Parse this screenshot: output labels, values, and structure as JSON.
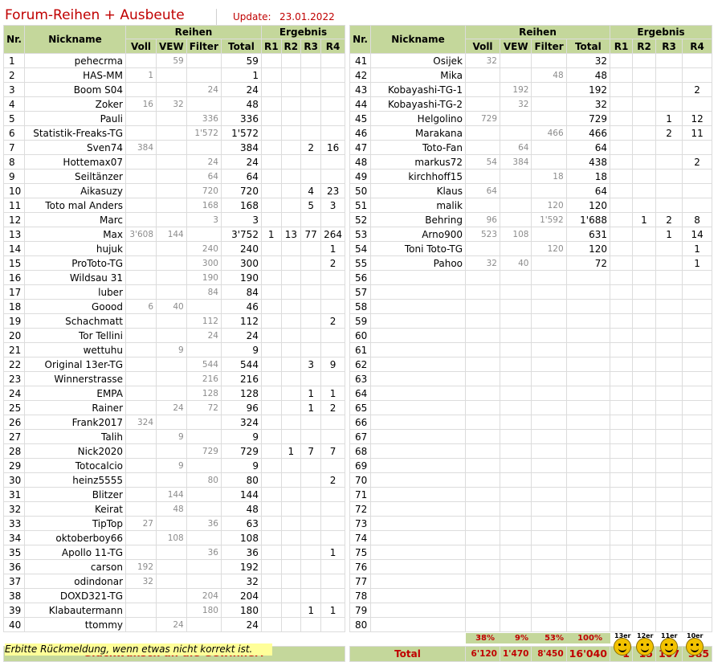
{
  "header": {
    "title": "Forum-Reihen + Ausbeute",
    "update_label": "Update:",
    "update_value": "23.01.2022"
  },
  "columns": {
    "nr": "Nr.",
    "nickname": "Nickname",
    "group_reihen": "Reihen",
    "group_ergebnis": "Ergebnis",
    "voll": "Voll",
    "vew": "VEW",
    "filter": "Filter",
    "total": "Total",
    "r1": "R1",
    "r2": "R2",
    "r3": "R3",
    "r4": "R4"
  },
  "left_rows": [
    {
      "nr": "1",
      "nick": "pehecrma",
      "voll": "",
      "vew": "59",
      "filter": "",
      "total": "59",
      "r1": "",
      "r2": "",
      "r3": "",
      "r4": ""
    },
    {
      "nr": "2",
      "nick": "HAS-MM",
      "voll": "1",
      "vew": "",
      "filter": "",
      "total": "1",
      "r1": "",
      "r2": "",
      "r3": "",
      "r4": ""
    },
    {
      "nr": "3",
      "nick": "Boom S04",
      "voll": "",
      "vew": "",
      "filter": "24",
      "total": "24",
      "r1": "",
      "r2": "",
      "r3": "",
      "r4": ""
    },
    {
      "nr": "4",
      "nick": "Zoker",
      "voll": "16",
      "vew": "32",
      "filter": "",
      "total": "48",
      "r1": "",
      "r2": "",
      "r3": "",
      "r4": ""
    },
    {
      "nr": "5",
      "nick": "Pauli",
      "voll": "",
      "vew": "",
      "filter": "336",
      "total": "336",
      "r1": "",
      "r2": "",
      "r3": "",
      "r4": ""
    },
    {
      "nr": "6",
      "nick": "Statistik-Freaks-TG",
      "voll": "",
      "vew": "",
      "filter": "1'572",
      "total": "1'572",
      "r1": "",
      "r2": "",
      "r3": "",
      "r4": ""
    },
    {
      "nr": "7",
      "nick": "Sven74",
      "voll": "384",
      "vew": "",
      "filter": "",
      "total": "384",
      "r1": "",
      "r2": "",
      "r3": "2",
      "r4": "16"
    },
    {
      "nr": "8",
      "nick": "Hottemax07",
      "voll": "",
      "vew": "",
      "filter": "24",
      "total": "24",
      "r1": "",
      "r2": "",
      "r3": "",
      "r4": ""
    },
    {
      "nr": "9",
      "nick": "Seiltänzer",
      "voll": "",
      "vew": "",
      "filter": "64",
      "total": "64",
      "r1": "",
      "r2": "",
      "r3": "",
      "r4": ""
    },
    {
      "nr": "10",
      "nick": "Aikasuzy",
      "voll": "",
      "vew": "",
      "filter": "720",
      "total": "720",
      "r1": "",
      "r2": "",
      "r3": "4",
      "r4": "23"
    },
    {
      "nr": "11",
      "nick": "Toto mal Anders",
      "voll": "",
      "vew": "",
      "filter": "168",
      "total": "168",
      "r1": "",
      "r2": "",
      "r3": "5",
      "r4": "3"
    },
    {
      "nr": "12",
      "nick": "Marc",
      "voll": "",
      "vew": "",
      "filter": "3",
      "total": "3",
      "r1": "",
      "r2": "",
      "r3": "",
      "r4": ""
    },
    {
      "nr": "13",
      "nick": "Max",
      "voll": "3'608",
      "vew": "144",
      "filter": "",
      "total": "3'752",
      "r1": "1",
      "r2": "13",
      "r3": "77",
      "r4": "264"
    },
    {
      "nr": "14",
      "nick": "hujuk",
      "voll": "",
      "vew": "",
      "filter": "240",
      "total": "240",
      "r1": "",
      "r2": "",
      "r3": "",
      "r4": "1"
    },
    {
      "nr": "15",
      "nick": "ProToto-TG",
      "voll": "",
      "vew": "",
      "filter": "300",
      "total": "300",
      "r1": "",
      "r2": "",
      "r3": "",
      "r4": "2"
    },
    {
      "nr": "16",
      "nick": "Wildsau 31",
      "voll": "",
      "vew": "",
      "filter": "190",
      "total": "190",
      "r1": "",
      "r2": "",
      "r3": "",
      "r4": ""
    },
    {
      "nr": "17",
      "nick": "luber",
      "voll": "",
      "vew": "",
      "filter": "84",
      "total": "84",
      "r1": "",
      "r2": "",
      "r3": "",
      "r4": ""
    },
    {
      "nr": "18",
      "nick": "Goood",
      "voll": "6",
      "vew": "40",
      "filter": "",
      "total": "46",
      "r1": "",
      "r2": "",
      "r3": "",
      "r4": ""
    },
    {
      "nr": "19",
      "nick": "Schachmatt",
      "voll": "",
      "vew": "",
      "filter": "112",
      "total": "112",
      "r1": "",
      "r2": "",
      "r3": "",
      "r4": "2"
    },
    {
      "nr": "20",
      "nick": "Tor Tellini",
      "voll": "",
      "vew": "",
      "filter": "24",
      "total": "24",
      "r1": "",
      "r2": "",
      "r3": "",
      "r4": ""
    },
    {
      "nr": "21",
      "nick": "wettuhu",
      "voll": "",
      "vew": "9",
      "filter": "",
      "total": "9",
      "r1": "",
      "r2": "",
      "r3": "",
      "r4": ""
    },
    {
      "nr": "22",
      "nick": "Original 13er-TG",
      "voll": "",
      "vew": "",
      "filter": "544",
      "total": "544",
      "r1": "",
      "r2": "",
      "r3": "3",
      "r4": "9"
    },
    {
      "nr": "23",
      "nick": "Winnerstrasse",
      "voll": "",
      "vew": "",
      "filter": "216",
      "total": "216",
      "r1": "",
      "r2": "",
      "r3": "",
      "r4": ""
    },
    {
      "nr": "24",
      "nick": "EMPA",
      "voll": "",
      "vew": "",
      "filter": "128",
      "total": "128",
      "r1": "",
      "r2": "",
      "r3": "1",
      "r4": "1"
    },
    {
      "nr": "25",
      "nick": "Rainer",
      "voll": "",
      "vew": "24",
      "filter": "72",
      "total": "96",
      "r1": "",
      "r2": "",
      "r3": "1",
      "r4": "2"
    },
    {
      "nr": "26",
      "nick": "Frank2017",
      "voll": "324",
      "vew": "",
      "filter": "",
      "total": "324",
      "r1": "",
      "r2": "",
      "r3": "",
      "r4": ""
    },
    {
      "nr": "27",
      "nick": "Talih",
      "voll": "",
      "vew": "9",
      "filter": "",
      "total": "9",
      "r1": "",
      "r2": "",
      "r3": "",
      "r4": ""
    },
    {
      "nr": "28",
      "nick": "Nick2020",
      "voll": "",
      "vew": "",
      "filter": "729",
      "total": "729",
      "r1": "",
      "r2": "1",
      "r3": "7",
      "r4": "7"
    },
    {
      "nr": "29",
      "nick": "Totocalcio",
      "voll": "",
      "vew": "9",
      "filter": "",
      "total": "9",
      "r1": "",
      "r2": "",
      "r3": "",
      "r4": ""
    },
    {
      "nr": "30",
      "nick": "heinz5555",
      "voll": "",
      "vew": "",
      "filter": "80",
      "total": "80",
      "r1": "",
      "r2": "",
      "r3": "",
      "r4": "2"
    },
    {
      "nr": "31",
      "nick": "Blitzer",
      "voll": "",
      "vew": "144",
      "filter": "",
      "total": "144",
      "r1": "",
      "r2": "",
      "r3": "",
      "r4": ""
    },
    {
      "nr": "32",
      "nick": "Keirat",
      "voll": "",
      "vew": "48",
      "filter": "",
      "total": "48",
      "r1": "",
      "r2": "",
      "r3": "",
      "r4": ""
    },
    {
      "nr": "33",
      "nick": "TipTop",
      "voll": "27",
      "vew": "",
      "filter": "36",
      "total": "63",
      "r1": "",
      "r2": "",
      "r3": "",
      "r4": ""
    },
    {
      "nr": "34",
      "nick": "oktoberboy66",
      "voll": "",
      "vew": "108",
      "filter": "",
      "total": "108",
      "r1": "",
      "r2": "",
      "r3": "",
      "r4": ""
    },
    {
      "nr": "35",
      "nick": "Apollo 11-TG",
      "voll": "",
      "vew": "",
      "filter": "36",
      "total": "36",
      "r1": "",
      "r2": "",
      "r3": "",
      "r4": "1"
    },
    {
      "nr": "36",
      "nick": "carson",
      "voll": "192",
      "vew": "",
      "filter": "",
      "total": "192",
      "r1": "",
      "r2": "",
      "r3": "",
      "r4": ""
    },
    {
      "nr": "37",
      "nick": "odindonar",
      "voll": "32",
      "vew": "",
      "filter": "",
      "total": "32",
      "r1": "",
      "r2": "",
      "r3": "",
      "r4": ""
    },
    {
      "nr": "38",
      "nick": "DOXD321-TG",
      "voll": "",
      "vew": "",
      "filter": "204",
      "total": "204",
      "r1": "",
      "r2": "",
      "r3": "",
      "r4": ""
    },
    {
      "nr": "39",
      "nick": "Klabautermann",
      "voll": "",
      "vew": "",
      "filter": "180",
      "total": "180",
      "r1": "",
      "r2": "",
      "r3": "1",
      "r4": "1"
    },
    {
      "nr": "40",
      "nick": "ttommy",
      "voll": "",
      "vew": "24",
      "filter": "",
      "total": "24",
      "r1": "",
      "r2": "",
      "r3": "",
      "r4": ""
    }
  ],
  "right_rows": [
    {
      "nr": "41",
      "nick": "Osijek",
      "voll": "32",
      "vew": "",
      "filter": "",
      "total": "32",
      "r1": "",
      "r2": "",
      "r3": "",
      "r4": ""
    },
    {
      "nr": "42",
      "nick": "Mika",
      "voll": "",
      "vew": "",
      "filter": "48",
      "total": "48",
      "r1": "",
      "r2": "",
      "r3": "",
      "r4": ""
    },
    {
      "nr": "43",
      "nick": "Kobayashi-TG-1",
      "voll": "",
      "vew": "192",
      "filter": "",
      "total": "192",
      "r1": "",
      "r2": "",
      "r3": "",
      "r4": "2"
    },
    {
      "nr": "44",
      "nick": "Kobayashi-TG-2",
      "voll": "",
      "vew": "32",
      "filter": "",
      "total": "32",
      "r1": "",
      "r2": "",
      "r3": "",
      "r4": ""
    },
    {
      "nr": "45",
      "nick": "Helgolino",
      "voll": "729",
      "vew": "",
      "filter": "",
      "total": "729",
      "r1": "",
      "r2": "",
      "r3": "1",
      "r4": "12"
    },
    {
      "nr": "46",
      "nick": "Marakana",
      "voll": "",
      "vew": "",
      "filter": "466",
      "total": "466",
      "r1": "",
      "r2": "",
      "r3": "2",
      "r4": "11"
    },
    {
      "nr": "47",
      "nick": "Toto-Fan",
      "voll": "",
      "vew": "64",
      "filter": "",
      "total": "64",
      "r1": "",
      "r2": "",
      "r3": "",
      "r4": ""
    },
    {
      "nr": "48",
      "nick": "markus72",
      "voll": "54",
      "vew": "384",
      "filter": "",
      "total": "438",
      "r1": "",
      "r2": "",
      "r3": "",
      "r4": "2"
    },
    {
      "nr": "49",
      "nick": "kirchhoff15",
      "voll": "",
      "vew": "",
      "filter": "18",
      "total": "18",
      "r1": "",
      "r2": "",
      "r3": "",
      "r4": ""
    },
    {
      "nr": "50",
      "nick": "Klaus",
      "voll": "64",
      "vew": "",
      "filter": "",
      "total": "64",
      "r1": "",
      "r2": "",
      "r3": "",
      "r4": ""
    },
    {
      "nr": "51",
      "nick": "malik",
      "voll": "",
      "vew": "",
      "filter": "120",
      "total": "120",
      "r1": "",
      "r2": "",
      "r3": "",
      "r4": ""
    },
    {
      "nr": "52",
      "nick": "Behring",
      "voll": "96",
      "vew": "",
      "filter": "1'592",
      "total": "1'688",
      "r1": "",
      "r2": "1",
      "r3": "2",
      "r4": "8"
    },
    {
      "nr": "53",
      "nick": "Arno900",
      "voll": "523",
      "vew": "108",
      "filter": "",
      "total": "631",
      "r1": "",
      "r2": "",
      "r3": "1",
      "r4": "14"
    },
    {
      "nr": "54",
      "nick": "Toni Toto-TG",
      "voll": "",
      "vew": "",
      "filter": "120",
      "total": "120",
      "r1": "",
      "r2": "",
      "r3": "",
      "r4": "1"
    },
    {
      "nr": "55",
      "nick": "Pahoo",
      "voll": "32",
      "vew": "40",
      "filter": "",
      "total": "72",
      "r1": "",
      "r2": "",
      "r3": "",
      "r4": "1"
    },
    {
      "nr": "56",
      "nick": "",
      "voll": "",
      "vew": "",
      "filter": "",
      "total": "",
      "r1": "",
      "r2": "",
      "r3": "",
      "r4": ""
    },
    {
      "nr": "57",
      "nick": "",
      "voll": "",
      "vew": "",
      "filter": "",
      "total": "",
      "r1": "",
      "r2": "",
      "r3": "",
      "r4": ""
    },
    {
      "nr": "58",
      "nick": "",
      "voll": "",
      "vew": "",
      "filter": "",
      "total": "",
      "r1": "",
      "r2": "",
      "r3": "",
      "r4": ""
    },
    {
      "nr": "59",
      "nick": "",
      "voll": "",
      "vew": "",
      "filter": "",
      "total": "",
      "r1": "",
      "r2": "",
      "r3": "",
      "r4": ""
    },
    {
      "nr": "60",
      "nick": "",
      "voll": "",
      "vew": "",
      "filter": "",
      "total": "",
      "r1": "",
      "r2": "",
      "r3": "",
      "r4": ""
    },
    {
      "nr": "61",
      "nick": "",
      "voll": "",
      "vew": "",
      "filter": "",
      "total": "",
      "r1": "",
      "r2": "",
      "r3": "",
      "r4": ""
    },
    {
      "nr": "62",
      "nick": "",
      "voll": "",
      "vew": "",
      "filter": "",
      "total": "",
      "r1": "",
      "r2": "",
      "r3": "",
      "r4": ""
    },
    {
      "nr": "63",
      "nick": "",
      "voll": "",
      "vew": "",
      "filter": "",
      "total": "",
      "r1": "",
      "r2": "",
      "r3": "",
      "r4": ""
    },
    {
      "nr": "64",
      "nick": "",
      "voll": "",
      "vew": "",
      "filter": "",
      "total": "",
      "r1": "",
      "r2": "",
      "r3": "",
      "r4": ""
    },
    {
      "nr": "65",
      "nick": "",
      "voll": "",
      "vew": "",
      "filter": "",
      "total": "",
      "r1": "",
      "r2": "",
      "r3": "",
      "r4": ""
    },
    {
      "nr": "66",
      "nick": "",
      "voll": "",
      "vew": "",
      "filter": "",
      "total": "",
      "r1": "",
      "r2": "",
      "r3": "",
      "r4": ""
    },
    {
      "nr": "67",
      "nick": "",
      "voll": "",
      "vew": "",
      "filter": "",
      "total": "",
      "r1": "",
      "r2": "",
      "r3": "",
      "r4": ""
    },
    {
      "nr": "68",
      "nick": "",
      "voll": "",
      "vew": "",
      "filter": "",
      "total": "",
      "r1": "",
      "r2": "",
      "r3": "",
      "r4": ""
    },
    {
      "nr": "69",
      "nick": "",
      "voll": "",
      "vew": "",
      "filter": "",
      "total": "",
      "r1": "",
      "r2": "",
      "r3": "",
      "r4": ""
    },
    {
      "nr": "70",
      "nick": "",
      "voll": "",
      "vew": "",
      "filter": "",
      "total": "",
      "r1": "",
      "r2": "",
      "r3": "",
      "r4": ""
    },
    {
      "nr": "71",
      "nick": "",
      "voll": "",
      "vew": "",
      "filter": "",
      "total": "",
      "r1": "",
      "r2": "",
      "r3": "",
      "r4": ""
    },
    {
      "nr": "72",
      "nick": "",
      "voll": "",
      "vew": "",
      "filter": "",
      "total": "",
      "r1": "",
      "r2": "",
      "r3": "",
      "r4": ""
    },
    {
      "nr": "73",
      "nick": "",
      "voll": "",
      "vew": "",
      "filter": "",
      "total": "",
      "r1": "",
      "r2": "",
      "r3": "",
      "r4": ""
    },
    {
      "nr": "74",
      "nick": "",
      "voll": "",
      "vew": "",
      "filter": "",
      "total": "",
      "r1": "",
      "r2": "",
      "r3": "",
      "r4": ""
    },
    {
      "nr": "75",
      "nick": "",
      "voll": "",
      "vew": "",
      "filter": "",
      "total": "",
      "r1": "",
      "r2": "",
      "r3": "",
      "r4": ""
    },
    {
      "nr": "76",
      "nick": "",
      "voll": "",
      "vew": "",
      "filter": "",
      "total": "",
      "r1": "",
      "r2": "",
      "r3": "",
      "r4": ""
    },
    {
      "nr": "77",
      "nick": "",
      "voll": "",
      "vew": "",
      "filter": "",
      "total": "",
      "r1": "",
      "r2": "",
      "r3": "",
      "r4": ""
    },
    {
      "nr": "78",
      "nick": "",
      "voll": "",
      "vew": "",
      "filter": "",
      "total": "",
      "r1": "",
      "r2": "",
      "r3": "",
      "r4": ""
    },
    {
      "nr": "79",
      "nick": "",
      "voll": "",
      "vew": "",
      "filter": "",
      "total": "",
      "r1": "",
      "r2": "",
      "r3": "",
      "r4": ""
    },
    {
      "nr": "80",
      "nick": "",
      "voll": "",
      "vew": "",
      "filter": "",
      "total": "",
      "r1": "",
      "r2": "",
      "r3": "",
      "r4": ""
    }
  ],
  "footer": {
    "congrats": "Glückwunsch an die Gewinner!",
    "total_label": "Total",
    "totals": {
      "voll": "6'120",
      "vew": "1'470",
      "filter": "8'450",
      "total": "16'040",
      "r1": "1",
      "r2": "15",
      "r3": "107",
      "r4": "385"
    },
    "percents": {
      "voll": "38%",
      "vew": "9%",
      "filter": "53%",
      "total": "100%"
    },
    "note": "Erbitte Rückmeldung, wenn etwas nicht korrekt ist.",
    "emoji_tags": [
      "13er",
      "12er",
      "11er",
      "10er"
    ]
  },
  "colors": {
    "header_fill": "#c4d79b",
    "accent_red": "#c00000",
    "note_fill": "#ffff99",
    "secondary_text": "#8c8c8c"
  },
  "icons": [
    "smiley-13er-icon",
    "smiley-12er-icon",
    "smiley-11er-icon",
    "smiley-10er-icon"
  ]
}
